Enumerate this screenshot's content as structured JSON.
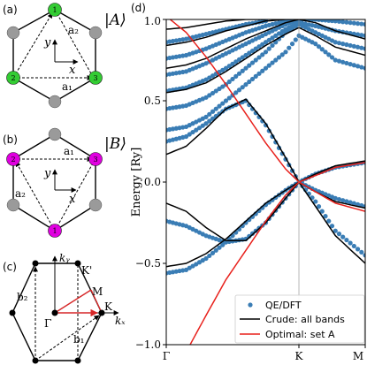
{
  "panel_a": {
    "label": "(a)",
    "state_label": "|A⟩",
    "state_color": "#33cc33",
    "site_labels": [
      "1",
      "2",
      "3"
    ],
    "vector_labels": [
      "a₂",
      "a₁"
    ],
    "axis_x": "x",
    "axis_y": "y"
  },
  "panel_b": {
    "label": "(b)",
    "state_label": "|B⟩",
    "state_color": "#e000e0",
    "site_labels": [
      "2",
      "3",
      "1"
    ],
    "vector_labels": [
      "a₁",
      "a₂"
    ],
    "axis_x": "x",
    "axis_y": "y"
  },
  "panel_c": {
    "label": "(c)",
    "axis_kx": "kₓ",
    "axis_ky": "kᵧ",
    "point_labels": {
      "gamma": "Γ",
      "K": "K",
      "Kp": "K'",
      "M": "M"
    },
    "vector_labels": [
      "b₂",
      "b₁"
    ],
    "path_color": "#d62728"
  },
  "panel_d": {
    "label": "(d)",
    "colors": {
      "dft": "#3a7db5",
      "crude": "#000000",
      "optimal": "#e8211c"
    }
  },
  "chart_data": {
    "type": "line",
    "title": "",
    "xlabel": "",
    "ylabel": "Energy [Ry]",
    "xticks": [
      "Γ",
      "K",
      "M"
    ],
    "x_positions": {
      "Γ": 0.0,
      "K": 0.6667,
      "M": 1.0
    },
    "ylim": [
      -1.0,
      1.0
    ],
    "yticks": [
      -1.0,
      -0.5,
      0.0,
      0.5,
      1.0
    ],
    "ytick_labels": [
      "−1.0",
      "−0.5",
      "0.0",
      "0.5",
      "1.0"
    ],
    "legend": {
      "position": "lower-right",
      "entries": [
        "QE/DFT",
        "Crude: all bands",
        "Optimal: set A"
      ]
    },
    "series": [
      {
        "name": "QE/DFT",
        "style": "dots",
        "bands": [
          {
            "x": [
              0,
              0.1,
              0.2,
              0.3,
              0.4,
              0.5,
              0.6,
              0.667,
              0.75,
              0.85,
              1.0
            ],
            "y": [
              -0.56,
              -0.54,
              -0.47,
              -0.37,
              -0.25,
              -0.14,
              -0.05,
              0.0,
              -0.05,
              -0.1,
              -0.15
            ]
          },
          {
            "x": [
              0,
              0.1,
              0.2,
              0.3,
              0.4,
              0.5,
              0.6,
              0.667,
              0.75,
              0.85,
              1.0
            ],
            "y": [
              -0.24,
              -0.27,
              -0.33,
              -0.37,
              -0.35,
              -0.25,
              -0.1,
              0.0,
              -0.12,
              -0.3,
              -0.45
            ]
          },
          {
            "x": [
              0,
              0.1,
              0.2,
              0.3,
              0.4,
              0.5,
              0.6,
              0.667,
              0.75,
              0.85,
              1.0
            ],
            "y": [
              0.25,
              0.28,
              0.36,
              0.45,
              0.5,
              0.35,
              0.14,
              0.0,
              0.05,
              0.09,
              0.12
            ]
          },
          {
            "x": [
              0,
              0.1,
              0.2,
              0.3,
              0.4,
              0.5,
              0.6,
              0.667,
              0.75,
              0.85,
              1.0
            ],
            "y": [
              0.32,
              0.34,
              0.4,
              0.5,
              0.6,
              0.7,
              0.8,
              0.9,
              0.85,
              0.75,
              0.7
            ]
          },
          {
            "x": [
              0,
              0.1,
              0.2,
              0.3,
              0.4,
              0.5,
              0.6,
              0.667,
              0.75,
              0.85,
              1.0
            ],
            "y": [
              0.45,
              0.47,
              0.52,
              0.6,
              0.7,
              0.8,
              0.92,
              0.97,
              0.92,
              0.86,
              0.82
            ]
          },
          {
            "x": [
              0,
              0.1,
              0.2,
              0.3,
              0.4,
              0.5,
              0.6,
              0.667,
              0.75,
              0.85,
              1.0
            ],
            "y": [
              0.56,
              0.58,
              0.63,
              0.7,
              0.78,
              0.86,
              0.94,
              0.98,
              0.96,
              0.93,
              0.9
            ]
          },
          {
            "x": [
              0,
              0.1,
              0.2,
              0.3,
              0.4,
              0.5,
              0.6,
              0.667,
              0.75,
              0.85,
              1.0
            ],
            "y": [
              0.66,
              0.68,
              0.73,
              0.79,
              0.85,
              0.91,
              0.97,
              1.0,
              1.0,
              0.99,
              0.97
            ]
          },
          {
            "x": [
              0,
              0.1,
              0.2,
              0.3,
              0.4,
              0.5,
              0.6,
              0.667
            ],
            "y": [
              0.76,
              0.78,
              0.82,
              0.87,
              0.92,
              0.96,
              0.99,
              1.0
            ]
          },
          {
            "x": [
              0,
              0.1,
              0.2,
              0.3,
              0.4,
              0.5
            ],
            "y": [
              0.86,
              0.88,
              0.91,
              0.94,
              0.97,
              0.99
            ]
          }
        ]
      },
      {
        "name": "Crude: all bands",
        "style": "line",
        "bands": [
          {
            "x": [
              0,
              0.1,
              0.2,
              0.3,
              0.4,
              0.5,
              0.6,
              0.667,
              0.75,
              0.85,
              1.0
            ],
            "y": [
              -0.52,
              -0.5,
              -0.44,
              -0.35,
              -0.24,
              -0.13,
              -0.05,
              0.0,
              -0.06,
              -0.12,
              -0.16
            ]
          },
          {
            "x": [
              0,
              0.1,
              0.2,
              0.3,
              0.4,
              0.5,
              0.6,
              0.667,
              0.75,
              0.85,
              1.0
            ],
            "y": [
              -0.13,
              -0.18,
              -0.28,
              -0.36,
              -0.36,
              -0.25,
              -0.1,
              0.0,
              -0.15,
              -0.33,
              -0.5
            ]
          },
          {
            "x": [
              0,
              0.1,
              0.2,
              0.3,
              0.4,
              0.5,
              0.6,
              0.667,
              0.75,
              0.85,
              1.0
            ],
            "y": [
              0.17,
              0.22,
              0.33,
              0.45,
              0.51,
              0.36,
              0.15,
              0.0,
              0.05,
              0.1,
              0.13
            ]
          },
          {
            "x": [
              0,
              0.1,
              0.2,
              0.3,
              0.4,
              0.5,
              0.6,
              0.667,
              0.75,
              0.85,
              1.0
            ],
            "y": [
              0.55,
              0.57,
              0.61,
              0.68,
              0.76,
              0.84,
              0.91,
              0.95,
              0.9,
              0.83,
              0.78
            ]
          },
          {
            "x": [
              0,
              0.1,
              0.2,
              0.3,
              0.4,
              0.5,
              0.6,
              0.667,
              0.75,
              0.85,
              1.0
            ],
            "y": [
              0.7,
              0.72,
              0.76,
              0.82,
              0.88,
              0.93,
              0.98,
              1.0,
              0.98,
              0.93,
              0.88
            ]
          },
          {
            "x": [
              0,
              0.1,
              0.2,
              0.3,
              0.4,
              0.5,
              0.6,
              0.667
            ],
            "y": [
              0.84,
              0.86,
              0.89,
              0.93,
              0.96,
              0.99,
              1.0,
              1.0
            ]
          },
          {
            "x": [
              0,
              0.1,
              0.2,
              0.3,
              0.4,
              0.5
            ],
            "y": [
              0.94,
              0.95,
              0.97,
              0.99,
              1.0,
              1.0
            ]
          }
        ]
      },
      {
        "name": "Optimal: set A",
        "style": "line",
        "bands": [
          {
            "x": [
              0.02,
              0.1,
              0.2,
              0.3,
              0.4,
              0.5,
              0.6,
              0.667,
              0.75,
              0.85,
              1.0
            ],
            "y": [
              1.0,
              0.92,
              0.77,
              0.6,
              0.42,
              0.24,
              0.08,
              0.0,
              0.04,
              0.09,
              0.12
            ]
          },
          {
            "x": [
              0.12,
              0.2,
              0.3,
              0.4,
              0.5,
              0.6,
              0.667,
              0.75,
              0.85,
              1.0
            ],
            "y": [
              -1.0,
              -0.82,
              -0.6,
              -0.42,
              -0.24,
              -0.08,
              0.0,
              -0.06,
              -0.13,
              -0.18
            ]
          }
        ]
      }
    ]
  }
}
